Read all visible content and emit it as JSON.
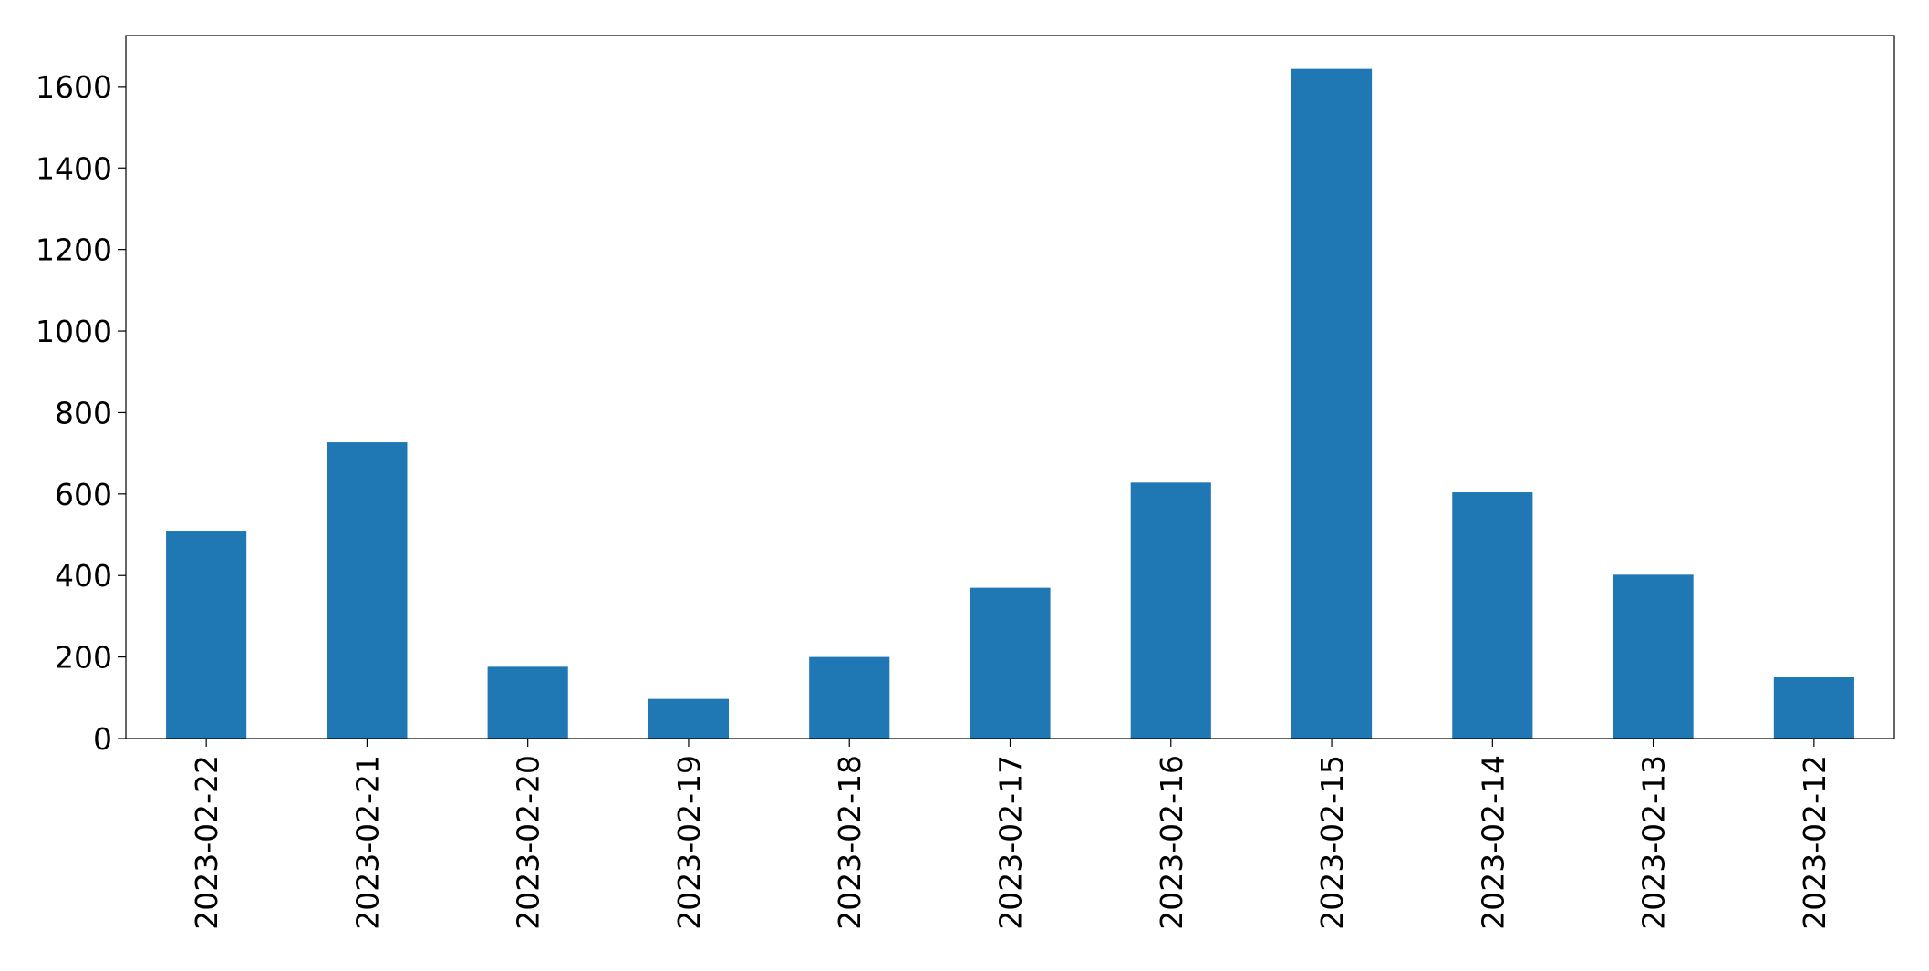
{
  "chart_data": {
    "type": "bar",
    "title": "",
    "xlabel": "",
    "ylabel": "",
    "categories": [
      "2023-02-22",
      "2023-02-21",
      "2023-02-20",
      "2023-02-19",
      "2023-02-18",
      "2023-02-17",
      "2023-02-16",
      "2023-02-15",
      "2023-02-14",
      "2023-02-13",
      "2023-02-12"
    ],
    "values": [
      510,
      727,
      176,
      97,
      200,
      370,
      628,
      1643,
      604,
      402,
      151
    ],
    "ylim": [
      0,
      1725
    ],
    "yticks": [
      0,
      200,
      400,
      600,
      800,
      1000,
      1200,
      1400,
      1600
    ],
    "bar_color": "#1f77b4",
    "grid": false,
    "legend": "none"
  }
}
